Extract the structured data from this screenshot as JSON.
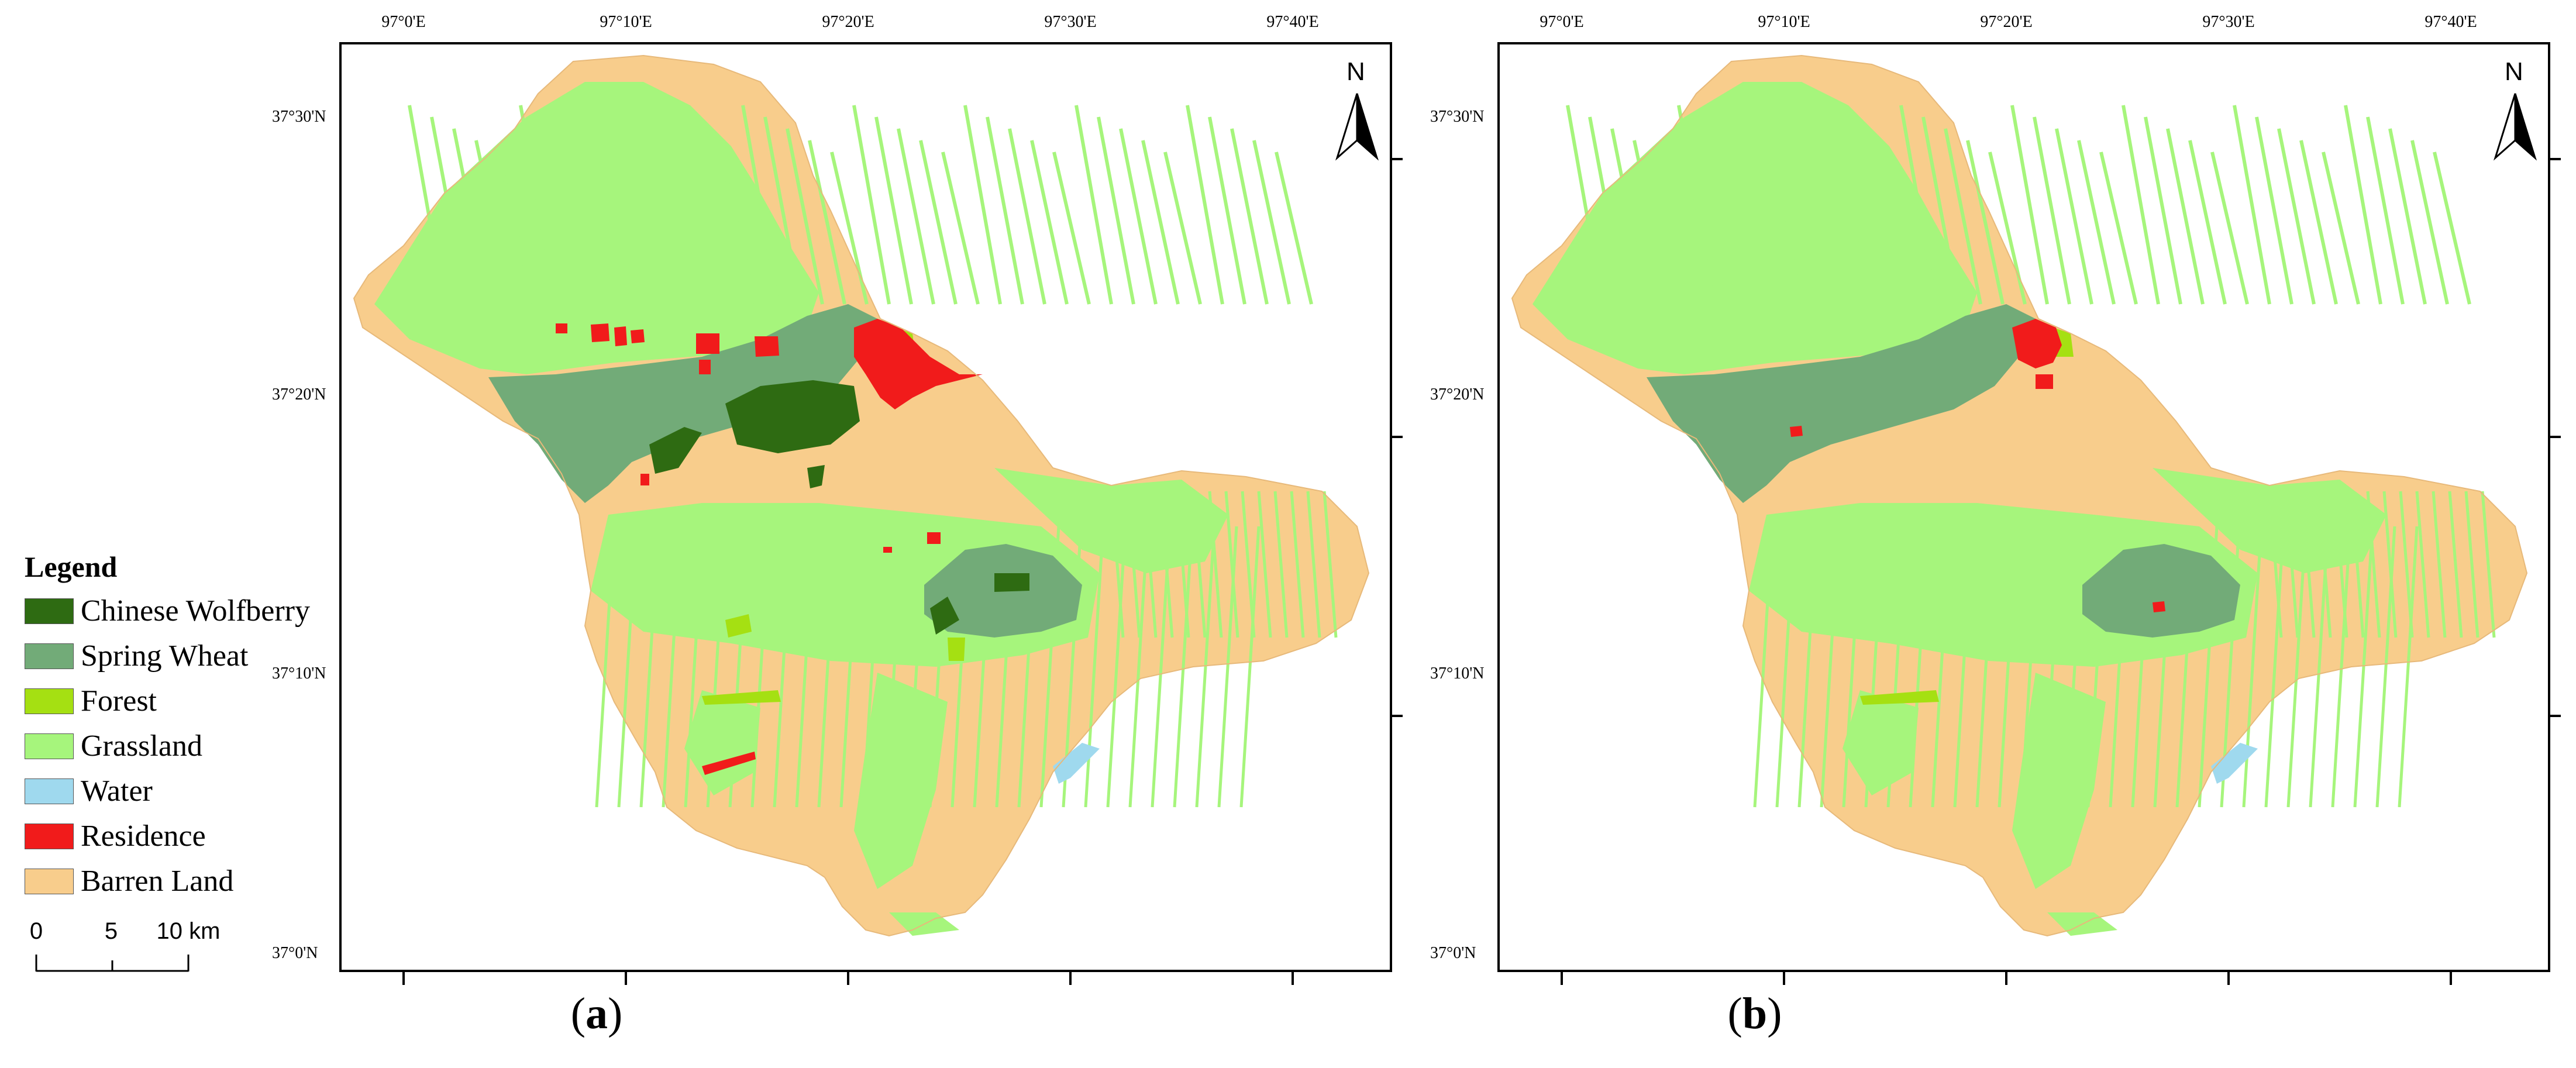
{
  "legend": {
    "title": "Legend",
    "items": [
      {
        "label": "Chinese Wolfberry",
        "color": "#2e6b12"
      },
      {
        "label": "Spring Wheat",
        "color": "#72ab78"
      },
      {
        "label": "Forest",
        "color": "#a5e012"
      },
      {
        "label": "Grassland",
        "color": "#a6f57c"
      },
      {
        "label": "Water",
        "color": "#9fd9ee"
      },
      {
        "label": "Residence",
        "color": "#f11b1b"
      },
      {
        "label": "Barren Land",
        "color": "#f8cd8c"
      }
    ]
  },
  "scale": {
    "labels": [
      "0",
      "5",
      "10 km"
    ]
  },
  "axes": {
    "longitude_labels": [
      "97°0'E",
      "97°10'E",
      "97°20'E",
      "97°30'E",
      "97°40'E"
    ],
    "latitude_labels": [
      "37°30'N",
      "37°20'N",
      "37°10'N",
      "37°0'N"
    ]
  },
  "north_arrow": {
    "label": "N"
  },
  "panels": [
    {
      "id": "a",
      "label_open": "(",
      "label_letter": "a",
      "label_close": ")"
    },
    {
      "id": "b",
      "label_open": "(",
      "label_letter": "b",
      "label_close": ")"
    }
  ],
  "colors": {
    "barren": "#f8cd8c",
    "grassland": "#a6f57c",
    "spring_wheat": "#72ab78",
    "wolfberry": "#2e6b12",
    "forest": "#a5e012",
    "water": "#9fd9ee",
    "residence": "#f11b1b"
  }
}
